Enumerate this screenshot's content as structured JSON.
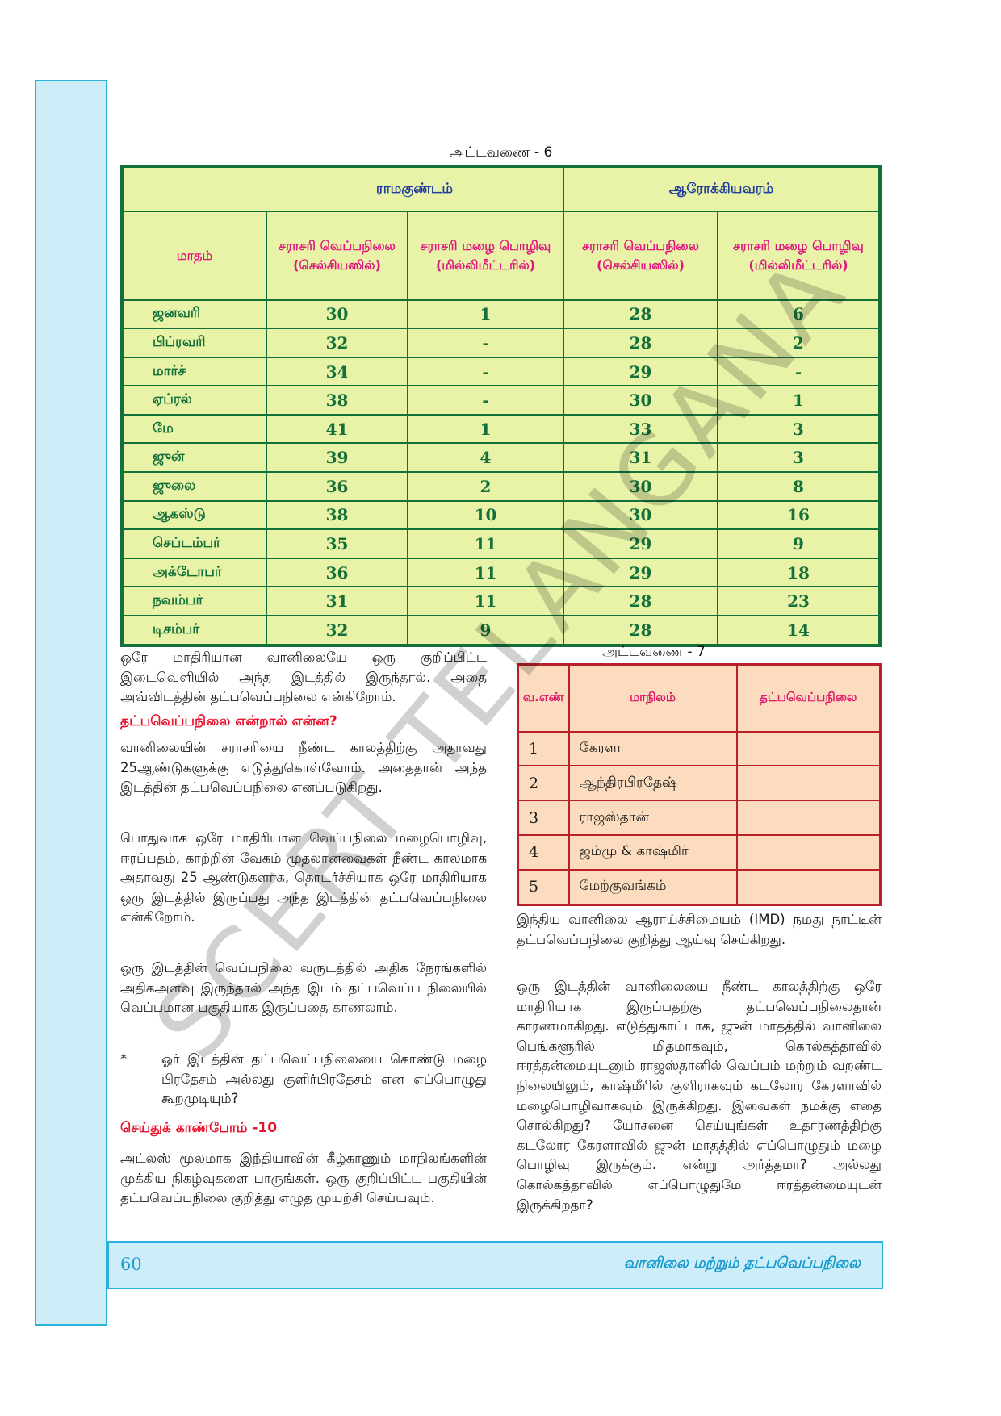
{
  "table6": {
    "caption": "அட்டவணை - 6",
    "month_header": "மாதம்",
    "regions": [
      "ராமகுண்டம்",
      "ஆரோக்கியவரம்"
    ],
    "col_headers": [
      "சராசரி வெப்பநிலை (செல்சியஸில்)",
      "சராசரி மழை பொழிவு (மில்லிமீட்டரில்)",
      "சராசரி வெப்பநிலை (செல்சியஸில்)",
      "சராசரி மழை பொழிவு (மில்லிமீட்டரில்)"
    ],
    "rows": [
      {
        "month": "ஜனவரி",
        "c1": "30",
        "c2": "1",
        "c3": "28",
        "c4": "6"
      },
      {
        "month": "பிப்ரவரி",
        "c1": "32",
        "c2": "-",
        "c3": "28",
        "c4": "2"
      },
      {
        "month": "மார்ச்",
        "c1": "34",
        "c2": "-",
        "c3": "29",
        "c4": "-"
      },
      {
        "month": "ஏப்ரல்",
        "c1": "38",
        "c2": "-",
        "c3": "30",
        "c4": "1"
      },
      {
        "month": "மே",
        "c1": "41",
        "c2": "1",
        "c3": "33",
        "c4": "3"
      },
      {
        "month": "ஜுன்",
        "c1": "39",
        "c2": "4",
        "c3": "31",
        "c4": "3"
      },
      {
        "month": "ஜுலை",
        "c1": "36",
        "c2": "2",
        "c3": "30",
        "c4": "8"
      },
      {
        "month": "ஆகஸ்டு",
        "c1": "38",
        "c2": "10",
        "c3": "30",
        "c4": "16"
      },
      {
        "month": "செப்டம்பர்",
        "c1": "35",
        "c2": "11",
        "c3": "29",
        "c4": "9"
      },
      {
        "month": "அக்டோபர்",
        "c1": "36",
        "c2": "11",
        "c3": "29",
        "c4": "18"
      },
      {
        "month": "நவம்பர்",
        "c1": "31",
        "c2": "11",
        "c3": "28",
        "c4": "23"
      },
      {
        "month": "டிசம்பர்",
        "c1": "32",
        "c2": "9",
        "c3": "28",
        "c4": "14"
      }
    ]
  },
  "table7": {
    "caption": "அட்டவணை - 7",
    "headers": [
      "வ.எண்",
      "மாநிலம்",
      "தட்பவெப்பநிலை"
    ],
    "rows": [
      {
        "n": "1",
        "state": "கேரளா"
      },
      {
        "n": "2",
        "state": "ஆந்திரபிரதேஷ்"
      },
      {
        "n": "3",
        "state": "ராஜஸ்தான்"
      },
      {
        "n": "4",
        "state": "ஜம்மு & காஷ்மிர்"
      },
      {
        "n": "5",
        "state": "மேற்குவங்கம்"
      }
    ]
  },
  "left": {
    "p1": "ஒரே மாதிரியான வானிலையே ஒரு குறிப்பிட்ட இடைவெளியில் அந்த இடத்தில் இருந்தால். அதை அவ்விடத்தின் தட்பவெப்பநிலை என்கிறோம்.",
    "heading1": "தட்பவெப்பநிலை என்றால் என்ன?",
    "p2": "வானிலையின் சராசரியை நீண்ட காலத்திற்கு அதாவது 25ஆண்டுகளுக்கு எடுத்துகொள்வோம். அதைதான் அந்த இடத்தின் தட்பவெப்பநிலை எனப்படுகிறது.",
    "p3": "பொதுவாக ஒரே மாதிரியான வெப்பநிலை மழைபொழிவு, ஈரப்பதம், காற்றின் வேகம் முதலானவைகள் நீண்ட காலமாக அதாவது 25 ஆண்டுகளாக, தொடர்ச்சியாக ஒரே மாதிரியாக ஒரு இடத்தில் இருப்பது அந்த இடத்தின் தட்பவெப்பநிலை என்கிறோம்.",
    "p4": "ஒரு இடத்தின் வெப்பநிலை வருடத்தில் அதிக நேரங்களில் அதிகஅளவு இருந்தால் அந்த இடம் தட்பவெப்ப நிலையில் வெப்பமான பகுதியாக இருப்பதை காணலாம்.",
    "bullet_mark": "*",
    "bullet": "ஓர் இடத்தின் தட்பவெப்பநிலையை கொண்டு மழை பிரதேசம் அல்லது குளிர்பிரதேசம் என எப்பொழுது கூறமுடியும்?",
    "heading2": "செய்துக் காண்போம் -10",
    "p5": "அட்லஸ் மூலமாக இந்தியாவின் கீழ்காணும் மாநிலங்களின் முக்கிய நிகழ்வுகளை பாருங்கள். ஒரு குறிப்பிட்ட பகுதியின் தட்பவெப்பநிலை குறித்து எழுத முயற்சி செய்யவும்."
  },
  "right": {
    "p1": "இந்திய வானிலை ஆராய்ச்சிமையம் (IMD) நமது நாட்டின் தட்பவெப்பநிலை குறித்து ஆய்வு செய்கிறது.",
    "p2": "ஒரு இடத்தின் வானிலையை நீண்ட காலத்திற்கு ஒரே மாதிரியாக இருப்பதற்கு தட்பவெப்பநிலைதான் காரணமாகிறது. எடுத்துகாட்டாக, ஜுன் மாதத்தில் வானிலை பெங்களூரில் மிதமாகவும், கொல்கத்தாவில் ஈரத்தன்மையுடனும் ராஜஸ்தானில் வெப்பம் மற்றும் வறண்ட நிலையிலும், காஷ்மீரில் குளிராகவும் கடலோர கேரளாவில் மழைபொழிவாகவும் இருக்கிறது. இவைகள் நமக்கு எதை சொல்கிறது? யோசனை செய்யுங்கள் உதாரணத்திற்கு கடலோர கேரளாவில் ஜுன் மாதத்தில் எப்பொழுதும் மழை பொழிவு இருக்கும். என்று அர்த்தமா? அல்லது கொல்கத்தாவில் எப்பொழுதுமே ஈரத்தன்மையுடன் இருக்கிறதா?"
  },
  "footer": {
    "page_number": "60",
    "chapter_title": "வானிலை மற்றும் தட்பவெப்பநிலை"
  },
  "watermark": "SCERT TELANGANA",
  "colors": {
    "table6_bg": "#e8f3a8",
    "table6_border": "#14703a",
    "table7_bg": "#fbdcbf",
    "table7_border": "#b8202a",
    "accent_blue": "#2ab0dc",
    "heading_red": "#e8102a"
  }
}
